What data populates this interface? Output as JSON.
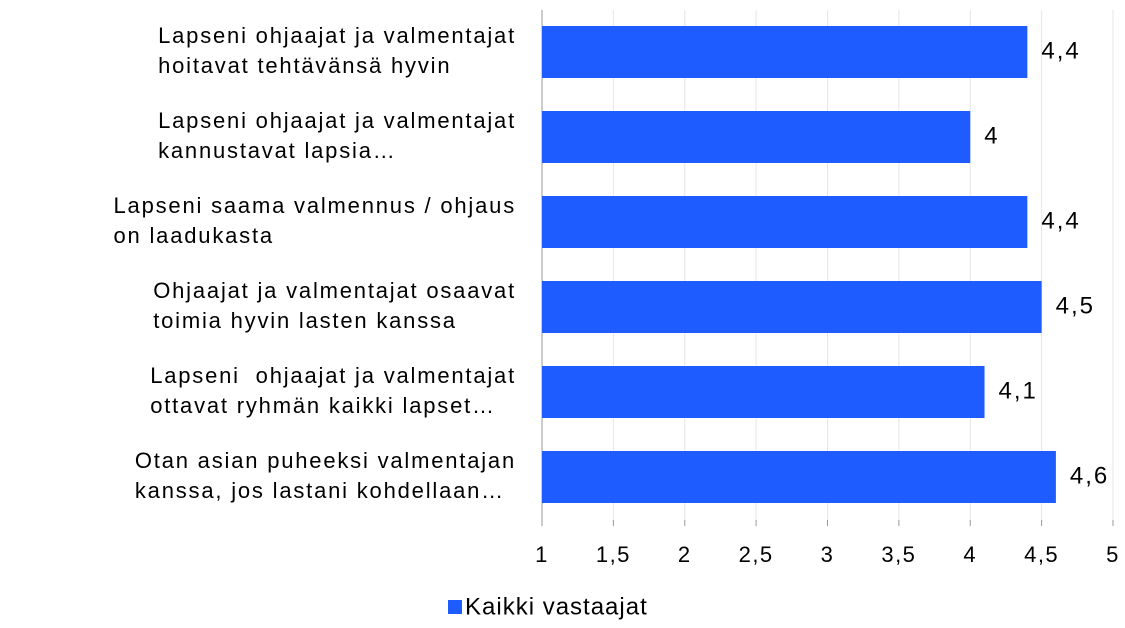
{
  "chart_data": {
    "type": "hbar",
    "categories": [
      [
        "Lapseni ohjaajat ja valmentajat",
        "hoitavat tehtävänsä hyvin"
      ],
      [
        "Lapseni ohjaajat ja valmentajat",
        "kannustavat lapsia…"
      ],
      [
        "Lapseni saama valmennus / ohjaus",
        "on laadukasta"
      ],
      [
        "Ohjaajat ja valmentajat osaavat",
        "toimia hyvin lasten kanssa"
      ],
      [
        "Lapseni  ohjaajat ja valmentajat",
        "ottavat ryhmän kaikki lapset…"
      ],
      [
        "Otan asian puheeksi valmentajan",
        "kanssa, jos lastani kohdellaan…"
      ]
    ],
    "series": [
      {
        "name": "Kaikki vastaajat",
        "color": "#1f5cff",
        "values": [
          4.4,
          4,
          4.4,
          4.5,
          4.1,
          4.6
        ],
        "value_labels": [
          "4,4",
          "4",
          "4,4",
          "4,5",
          "4,1",
          "4,6"
        ]
      }
    ],
    "xlim": [
      1,
      5
    ],
    "xticks": [
      1,
      {
        "value": 1.5,
        "label": "1,5"
      },
      2,
      {
        "value": 2.5,
        "label": "2,5"
      },
      3,
      {
        "value": 3.5,
        "label": "3,5"
      },
      4,
      {
        "value": 4.5,
        "label": "4,5"
      },
      5
    ],
    "grid": true,
    "legend": "bottom"
  }
}
